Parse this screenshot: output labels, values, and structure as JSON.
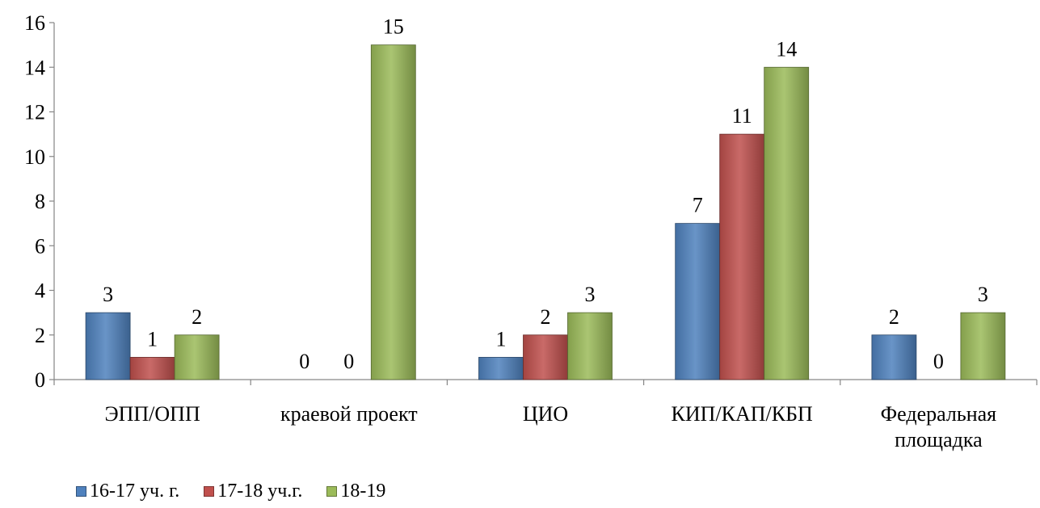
{
  "chart_data": {
    "type": "bar",
    "categories": [
      [
        "ЭПП/ОПП"
      ],
      [
        "краевой проект"
      ],
      [
        "ЦИО"
      ],
      [
        "КИП/КАП/КБП"
      ],
      [
        "Федеральная",
        "площадка"
      ]
    ],
    "series": [
      {
        "name": "16-17 уч. г.",
        "values": [
          3,
          0,
          1,
          7,
          2
        ],
        "color": "#4f81bd"
      },
      {
        "name": "17-18 уч.г.",
        "values": [
          1,
          0,
          2,
          11,
          0
        ],
        "color": "#c0504d"
      },
      {
        "name": "18-19",
        "values": [
          2,
          15,
          3,
          14,
          3
        ],
        "color": "#9bbb59"
      }
    ],
    "value_labels": [
      [
        "3",
        "1",
        "2"
      ],
      [
        "0",
        "0",
        "15"
      ],
      [
        "1",
        "2",
        "3"
      ],
      [
        "7",
        "11",
        "14"
      ],
      [
        "2",
        "0",
        "3"
      ]
    ],
    "ylim": [
      0,
      16
    ],
    "yticks": [
      "0",
      "2",
      "4",
      "6",
      "8",
      "10",
      "12",
      "14",
      "16"
    ],
    "grid": false,
    "legend_position": "bottom-left"
  }
}
